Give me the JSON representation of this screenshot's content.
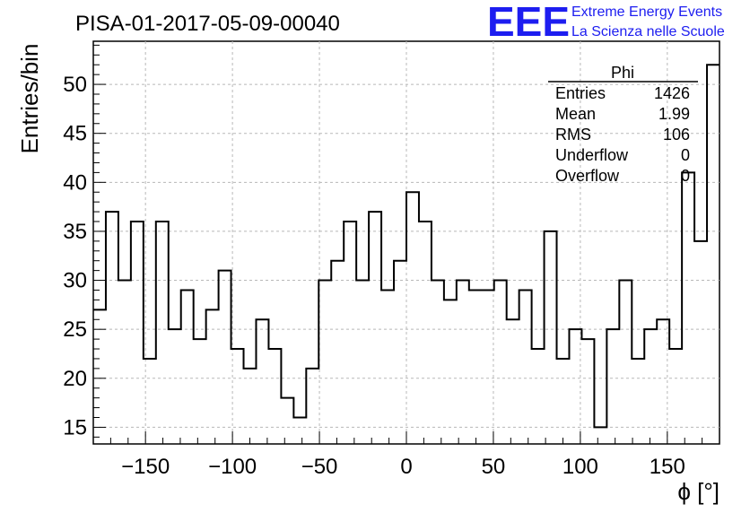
{
  "run_title": "PISA-01-2017-05-09-00040",
  "logo": {
    "letters": "EEE",
    "line1": "Extreme Energy Events",
    "line2": "La Scienza nelle Scuole",
    "color": "#1d1df0"
  },
  "stats_box": {
    "title": "Phi",
    "rows": [
      {
        "label": "Entries",
        "value": "1426"
      },
      {
        "label": "Mean",
        "value": "1.99"
      },
      {
        "label": "RMS",
        "value": "106"
      },
      {
        "label": "Underflow",
        "value": "0"
      },
      {
        "label": "Overflow",
        "value": "0"
      }
    ]
  },
  "chart_data": {
    "type": "histogram",
    "title": "PISA-01-2017-05-09-00040",
    "xlabel": "ϕ [°]",
    "ylabel": "Entries/bin",
    "xlim": [
      -180,
      180
    ],
    "ylim": [
      13.3,
      54.4
    ],
    "bin_width": 7.2,
    "xticks": [
      -150,
      -100,
      -50,
      0,
      50,
      100,
      150
    ],
    "yticks": [
      15,
      20,
      25,
      30,
      35,
      40,
      45,
      50
    ],
    "grid": true,
    "line_color": "#000000",
    "values": [
      27,
      37,
      30,
      36,
      22,
      36,
      25,
      29,
      24,
      27,
      31,
      23,
      21,
      26,
      23,
      18,
      16,
      21,
      30,
      32,
      36,
      30,
      37,
      29,
      32,
      39,
      36,
      30,
      28,
      30,
      29,
      29,
      30,
      26,
      29,
      23,
      35,
      22,
      25,
      24,
      15,
      25,
      30,
      22,
      25,
      26,
      23,
      41,
      34,
      52
    ]
  }
}
